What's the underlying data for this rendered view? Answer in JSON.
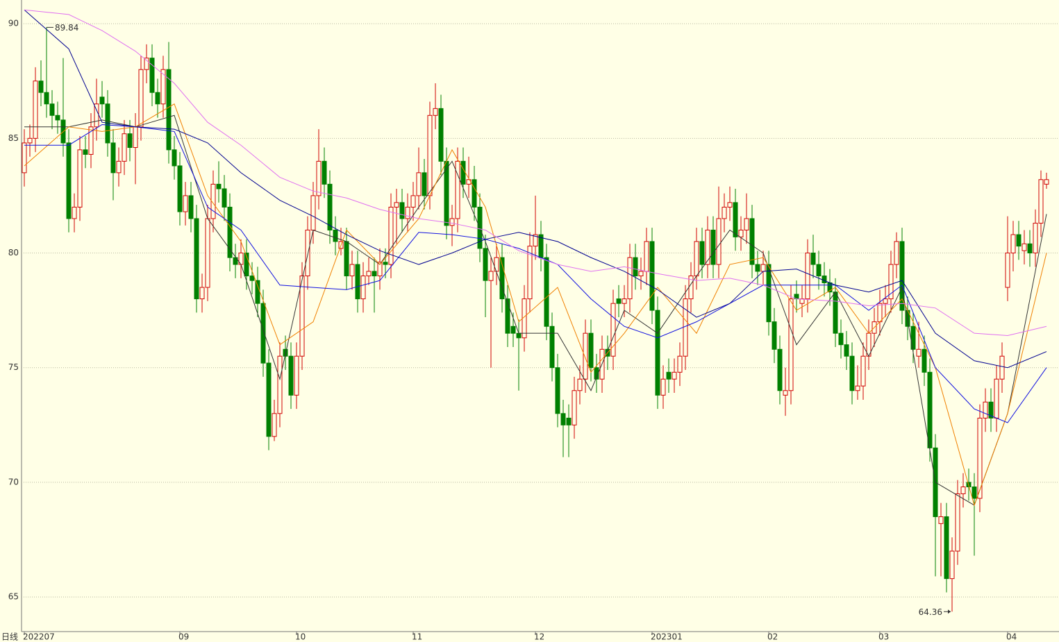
{
  "chart_data": {
    "type": "candlestick",
    "timeframe": "日线",
    "up_color": "#d00000",
    "down_color": "#008000",
    "grid": true,
    "ylim": [
      63.49,
      90.73
    ],
    "yticks": [
      65,
      70,
      75,
      80,
      85,
      90
    ],
    "xticks": [
      {
        "value": 0,
        "label": "202207"
      },
      {
        "value": 28,
        "label": "09"
      },
      {
        "value": 49,
        "label": "10"
      },
      {
        "value": 70,
        "label": "11"
      },
      {
        "value": 92,
        "label": "12"
      },
      {
        "value": 113,
        "label": "202301"
      },
      {
        "value": 134,
        "label": "02"
      },
      {
        "value": 154,
        "label": "03"
      },
      {
        "value": 177,
        "label": "04"
      }
    ],
    "ohlc": [
      [
        83.5,
        85.4,
        82.9,
        84.8
      ],
      [
        84.8,
        85.6,
        84.2,
        85.0
      ],
      [
        85.0,
        88.1,
        84.4,
        87.5
      ],
      [
        87.5,
        88.4,
        86.4,
        87.0
      ],
      [
        87.0,
        89.84,
        85.9,
        86.5
      ],
      [
        86.5,
        87.1,
        85.4,
        86.0
      ],
      [
        86.0,
        86.6,
        85.2,
        85.8
      ],
      [
        85.8,
        88.5,
        84.2,
        84.8
      ],
      [
        84.8,
        85.4,
        80.9,
        81.5
      ],
      [
        81.5,
        82.6,
        80.9,
        82.0
      ],
      [
        82.0,
        85.1,
        81.4,
        84.5
      ],
      [
        84.5,
        85.1,
        83.7,
        84.3
      ],
      [
        84.3,
        86.1,
        83.7,
        85.5
      ],
      [
        85.5,
        87.6,
        84.9,
        86.5
      ],
      [
        86.8,
        87.5,
        85.9,
        86.5
      ],
      [
        86.5,
        87.1,
        84.2,
        84.8
      ],
      [
        84.8,
        85.4,
        82.3,
        83.5
      ],
      [
        83.5,
        84.6,
        82.9,
        84.0
      ],
      [
        84.0,
        85.8,
        83.4,
        85.2
      ],
      [
        85.2,
        85.8,
        84.0,
        84.6
      ],
      [
        84.6,
        86.1,
        83.0,
        85.5
      ],
      [
        85.5,
        88.6,
        84.9,
        88.0
      ],
      [
        88.0,
        89.1,
        87.4,
        88.5
      ],
      [
        88.5,
        89.1,
        86.4,
        87.0
      ],
      [
        87.0,
        87.6,
        85.9,
        86.5
      ],
      [
        86.5,
        88.6,
        85.9,
        88.0
      ],
      [
        88.0,
        89.2,
        83.9,
        84.5
      ],
      [
        84.5,
        85.1,
        83.2,
        83.8
      ],
      [
        83.8,
        84.4,
        81.2,
        81.8
      ],
      [
        81.8,
        83.1,
        81.2,
        82.5
      ],
      [
        82.5,
        83.1,
        80.9,
        81.5
      ],
      [
        81.5,
        82.1,
        77.4,
        78.0
      ],
      [
        78.0,
        79.1,
        77.4,
        78.5
      ],
      [
        78.5,
        82.1,
        77.9,
        81.5
      ],
      [
        81.5,
        83.6,
        80.9,
        83.0
      ],
      [
        83.0,
        84.0,
        82.2,
        82.8
      ],
      [
        82.8,
        83.4,
        81.4,
        82.0
      ],
      [
        82.0,
        82.6,
        79.2,
        79.8
      ],
      [
        79.8,
        80.4,
        78.9,
        79.5
      ],
      [
        79.5,
        80.6,
        78.9,
        80.0
      ],
      [
        80.0,
        80.6,
        78.4,
        79.0
      ],
      [
        79.0,
        79.6,
        78.2,
        78.8
      ],
      [
        78.8,
        79.4,
        77.2,
        77.8
      ],
      [
        77.8,
        78.4,
        74.6,
        75.2
      ],
      [
        75.2,
        75.8,
        71.4,
        72.0
      ],
      [
        72.0,
        73.6,
        71.8,
        73.0
      ],
      [
        73.0,
        76.1,
        72.4,
        75.5
      ],
      [
        75.8,
        76.4,
        74.9,
        75.5
      ],
      [
        75.5,
        76.1,
        73.2,
        73.8
      ],
      [
        73.8,
        76.1,
        73.2,
        75.5
      ],
      [
        75.5,
        79.6,
        74.9,
        79.0
      ],
      [
        79.0,
        81.6,
        78.4,
        81.0
      ],
      [
        81.0,
        83.1,
        80.4,
        82.5
      ],
      [
        82.5,
        85.4,
        81.9,
        84.0
      ],
      [
        84.0,
        84.6,
        82.4,
        83.0
      ],
      [
        83.0,
        83.6,
        80.4,
        81.0
      ],
      [
        81.0,
        81.6,
        79.9,
        80.5
      ],
      [
        80.2,
        81.1,
        79.9,
        80.5
      ],
      [
        80.5,
        81.1,
        78.4,
        79.0
      ],
      [
        79.0,
        80.1,
        78.4,
        79.5
      ],
      [
        79.5,
        80.1,
        77.4,
        78.0
      ],
      [
        78.0,
        79.6,
        77.4,
        79.0
      ],
      [
        79.0,
        79.8,
        78.6,
        79.2
      ],
      [
        79.2,
        79.8,
        77.4,
        79.0
      ],
      [
        79.0,
        80.2,
        78.4,
        79.6
      ],
      [
        79.6,
        80.2,
        78.9,
        79.5
      ],
      [
        79.5,
        82.6,
        78.9,
        82.0
      ],
      [
        82.0,
        82.8,
        80.4,
        82.2
      ],
      [
        82.2,
        82.8,
        80.9,
        81.5
      ],
      [
        81.5,
        82.6,
        80.9,
        82.0
      ],
      [
        82.0,
        83.1,
        81.4,
        82.5
      ],
      [
        82.5,
        84.6,
        81.9,
        83.5
      ],
      [
        83.5,
        84.1,
        81.9,
        82.5
      ],
      [
        82.5,
        86.6,
        81.9,
        86.0
      ],
      [
        86.0,
        87.4,
        85.4,
        86.3
      ],
      [
        86.3,
        86.9,
        83.4,
        84.0
      ],
      [
        84.0,
        84.6,
        80.6,
        81.2
      ],
      [
        81.2,
        82.1,
        80.3,
        81.5
      ],
      [
        81.5,
        84.6,
        80.9,
        84.0
      ],
      [
        84.0,
        84.6,
        82.4,
        83.0
      ],
      [
        83.0,
        84.2,
        82.4,
        83.2
      ],
      [
        83.2,
        83.8,
        81.4,
        82.0
      ],
      [
        82.0,
        82.6,
        79.6,
        80.2
      ],
      [
        80.2,
        80.8,
        77.2,
        78.8
      ],
      [
        78.8,
        79.8,
        75.0,
        79.2
      ],
      [
        79.2,
        80.4,
        78.6,
        79.8
      ],
      [
        79.8,
        80.4,
        77.4,
        78.0
      ],
      [
        78.0,
        78.6,
        75.9,
        76.5
      ],
      [
        76.8,
        77.4,
        75.9,
        76.5
      ],
      [
        76.5,
        77.1,
        74.0,
        76.3
      ],
      [
        76.3,
        78.6,
        75.7,
        78.0
      ],
      [
        78.0,
        80.9,
        77.4,
        80.3
      ],
      [
        80.3,
        82.5,
        79.7,
        80.8
      ],
      [
        80.8,
        81.4,
        79.2,
        79.8
      ],
      [
        79.8,
        80.4,
        76.2,
        76.8
      ],
      [
        76.8,
        77.4,
        74.4,
        75.0
      ],
      [
        75.0,
        75.6,
        72.4,
        73.0
      ],
      [
        73.0,
        73.6,
        71.1,
        72.5
      ],
      [
        72.8,
        73.4,
        71.1,
        72.5
      ],
      [
        72.5,
        74.6,
        71.9,
        74.0
      ],
      [
        74.0,
        75.1,
        73.4,
        74.5
      ],
      [
        74.5,
        77.1,
        73.9,
        76.5
      ],
      [
        76.5,
        77.1,
        74.4,
        75.0
      ],
      [
        75.0,
        75.6,
        73.9,
        74.5
      ],
      [
        74.5,
        76.4,
        73.9,
        75.8
      ],
      [
        75.8,
        76.4,
        74.9,
        75.5
      ],
      [
        75.5,
        78.4,
        74.9,
        77.8
      ],
      [
        78.0,
        78.6,
        77.2,
        77.8
      ],
      [
        77.8,
        78.6,
        77.2,
        78.0
      ],
      [
        78.0,
        80.4,
        77.4,
        79.8
      ],
      [
        79.8,
        80.4,
        78.4,
        79.0
      ],
      [
        79.0,
        79.8,
        78.4,
        79.2
      ],
      [
        79.2,
        81.1,
        78.6,
        80.5
      ],
      [
        80.5,
        81.1,
        76.9,
        77.5
      ],
      [
        77.5,
        78.1,
        73.2,
        73.8
      ],
      [
        73.8,
        75.1,
        73.2,
        74.5
      ],
      [
        74.8,
        75.4,
        73.9,
        74.5
      ],
      [
        74.5,
        75.4,
        73.9,
        74.8
      ],
      [
        74.8,
        76.1,
        74.2,
        75.5
      ],
      [
        75.5,
        78.6,
        74.9,
        78.0
      ],
      [
        78.0,
        79.6,
        77.4,
        79.0
      ],
      [
        79.0,
        81.1,
        78.4,
        80.5
      ],
      [
        80.5,
        81.1,
        78.9,
        79.5
      ],
      [
        79.5,
        81.6,
        78.9,
        81.0
      ],
      [
        81.0,
        81.6,
        78.9,
        79.5
      ],
      [
        79.5,
        82.9,
        78.9,
        81.5
      ],
      [
        81.5,
        82.6,
        80.9,
        82.0
      ],
      [
        82.0,
        82.9,
        81.4,
        82.2
      ],
      [
        82.2,
        82.8,
        80.1,
        80.7
      ],
      [
        80.7,
        81.6,
        80.1,
        81.0
      ],
      [
        81.0,
        82.6,
        80.4,
        81.5
      ],
      [
        81.5,
        82.1,
        78.9,
        79.5
      ],
      [
        79.5,
        80.1,
        78.6,
        79.2
      ],
      [
        79.2,
        80.1,
        78.6,
        79.5
      ],
      [
        79.5,
        80.1,
        76.4,
        77.0
      ],
      [
        77.0,
        77.6,
        75.2,
        75.8
      ],
      [
        75.8,
        76.4,
        73.4,
        74.0
      ],
      [
        73.8,
        75.0,
        72.9,
        74.0
      ],
      [
        74.0,
        78.6,
        73.4,
        78.0
      ],
      [
        78.2,
        78.8,
        77.4,
        78.0
      ],
      [
        77.8,
        78.6,
        77.2,
        78.0
      ],
      [
        78.0,
        80.6,
        77.4,
        80.0
      ],
      [
        80.0,
        80.8,
        78.9,
        79.5
      ],
      [
        79.5,
        80.1,
        78.4,
        79.0
      ],
      [
        79.0,
        79.6,
        78.1,
        78.7
      ],
      [
        78.7,
        79.3,
        77.7,
        78.3
      ],
      [
        78.3,
        78.9,
        75.9,
        76.5
      ],
      [
        76.5,
        77.1,
        75.4,
        76.0
      ],
      [
        76.0,
        76.6,
        74.9,
        75.5
      ],
      [
        75.5,
        76.1,
        73.4,
        74.0
      ],
      [
        74.0,
        75.1,
        73.6,
        74.2
      ],
      [
        74.2,
        76.1,
        73.6,
        75.5
      ],
      [
        75.5,
        77.1,
        74.9,
        76.5
      ],
      [
        76.5,
        77.6,
        75.9,
        77.0
      ],
      [
        77.0,
        78.4,
        76.4,
        77.8
      ],
      [
        77.8,
        78.6,
        77.2,
        78.0
      ],
      [
        78.0,
        80.1,
        77.4,
        79.5
      ],
      [
        79.5,
        80.9,
        78.9,
        80.5
      ],
      [
        80.5,
        81.1,
        76.9,
        77.5
      ],
      [
        77.5,
        78.1,
        76.2,
        76.8
      ],
      [
        76.8,
        77.4,
        75.2,
        75.8
      ],
      [
        75.5,
        77.0,
        75.0,
        75.8
      ],
      [
        75.8,
        76.4,
        74.2,
        74.8
      ],
      [
        74.8,
        75.4,
        70.9,
        71.5
      ],
      [
        71.5,
        72.1,
        65.9,
        68.5
      ],
      [
        68.2,
        69.1,
        65.9,
        68.5
      ],
      [
        68.5,
        69.1,
        65.2,
        65.8
      ],
      [
        65.8,
        67.6,
        64.36,
        67.0
      ],
      [
        67.0,
        70.1,
        66.4,
        69.5
      ],
      [
        69.5,
        70.4,
        68.9,
        69.8
      ],
      [
        70.0,
        70.6,
        69.2,
        69.8
      ],
      [
        69.8,
        70.4,
        66.8,
        69.3
      ],
      [
        69.3,
        73.4,
        68.7,
        72.8
      ],
      [
        72.8,
        74.1,
        72.2,
        73.5
      ],
      [
        73.5,
        74.1,
        72.2,
        72.8
      ],
      [
        72.8,
        75.1,
        72.2,
        74.5
      ],
      [
        74.5,
        76.1,
        73.9,
        75.5
      ],
      [
        78.5,
        81.6,
        77.9,
        80.0
      ],
      [
        80.0,
        81.4,
        79.2,
        80.8
      ],
      [
        80.8,
        81.4,
        79.7,
        80.3
      ],
      [
        80.1,
        81.0,
        79.5,
        80.4
      ],
      [
        80.4,
        81.0,
        79.4,
        80.0
      ],
      [
        80.0,
        81.9,
        79.4,
        81.3
      ],
      [
        81.3,
        83.6,
        80.7,
        83.2
      ],
      [
        83.0,
        83.5,
        82.8,
        83.2
      ]
    ],
    "ma_lines": [
      {
        "color": "#333333",
        "x": [
          0,
          8,
          14,
          20,
          27,
          33,
          39,
          46,
          52,
          58,
          64,
          71,
          77,
          83,
          89,
          96,
          102,
          108,
          114,
          121,
          127,
          133,
          139,
          146,
          152,
          158,
          164,
          171,
          177,
          184
        ],
        "values": [
          85.5,
          85.5,
          85.8,
          85.5,
          86.0,
          81.5,
          79.5,
          74.5,
          81.0,
          80.5,
          79.5,
          82.0,
          84.0,
          80.5,
          76.5,
          76.5,
          74.0,
          77.5,
          76.5,
          79.0,
          81.0,
          80.0,
          76.0,
          78.3,
          75.5,
          78.5,
          70.0,
          69.0,
          73.0,
          81.7
        ]
      },
      {
        "color": "#f08000",
        "x": [
          0,
          8,
          14,
          20,
          27,
          33,
          39,
          46,
          52,
          58,
          64,
          71,
          77,
          83,
          89,
          96,
          102,
          108,
          114,
          121,
          127,
          133,
          139,
          146,
          152,
          158,
          164,
          171,
          177,
          184
        ],
        "values": [
          83.8,
          85.5,
          85.3,
          85.5,
          86.5,
          82.5,
          80.5,
          76.0,
          77.0,
          81.0,
          79.5,
          81.5,
          84.5,
          82.0,
          77.0,
          78.5,
          74.8,
          76.5,
          78.5,
          76.5,
          79.5,
          79.8,
          77.5,
          78.5,
          76.5,
          78.0,
          75.0,
          69.0,
          73.0,
          80.0
        ]
      },
      {
        "color": "#1010e0",
        "x": [
          0,
          8,
          14,
          20,
          27,
          33,
          39,
          46,
          52,
          58,
          64,
          71,
          77,
          83,
          89,
          96,
          102,
          108,
          114,
          121,
          127,
          133,
          139,
          146,
          152,
          158,
          164,
          171,
          177,
          184
        ],
        "values": [
          84.7,
          84.7,
          85.6,
          85.5,
          85.3,
          82.0,
          81.0,
          78.6,
          78.5,
          78.4,
          78.8,
          80.9,
          80.8,
          80.6,
          80.2,
          79.5,
          78.0,
          76.8,
          76.3,
          77.0,
          77.8,
          78.6,
          78.6,
          78.6,
          77.5,
          78.6,
          75.0,
          73.2,
          72.6,
          75.0
        ]
      },
      {
        "color": "#000090",
        "x": [
          0,
          8,
          14,
          20,
          27,
          33,
          39,
          46,
          52,
          58,
          64,
          71,
          77,
          83,
          89,
          96,
          102,
          108,
          114,
          121,
          127,
          133,
          139,
          146,
          152,
          158,
          164,
          171,
          177,
          184
        ],
        "values": [
          90.6,
          88.9,
          85.7,
          85.5,
          85.4,
          84.8,
          83.5,
          82.3,
          81.6,
          80.8,
          80.1,
          79.5,
          80.0,
          80.6,
          80.9,
          80.5,
          79.8,
          79.2,
          78.4,
          77.2,
          77.8,
          79.2,
          79.3,
          78.6,
          78.3,
          78.8,
          76.5,
          75.3,
          75.0,
          75.7
        ]
      },
      {
        "color": "#e070f0",
        "x": [
          0,
          8,
          14,
          20,
          27,
          33,
          39,
          46,
          52,
          58,
          64,
          71,
          77,
          83,
          89,
          96,
          102,
          108,
          114,
          121,
          127,
          133,
          139,
          146,
          152,
          158,
          164,
          171,
          177,
          184
        ],
        "values": [
          90.6,
          90.4,
          89.7,
          88.8,
          87.4,
          85.7,
          84.7,
          83.3,
          82.7,
          82.4,
          81.9,
          81.5,
          81.3,
          81.0,
          80.1,
          79.5,
          79.2,
          79.4,
          79.1,
          78.8,
          78.9,
          78.6,
          78.0,
          77.9,
          77.7,
          77.8,
          77.6,
          76.5,
          76.4,
          76.8
        ]
      }
    ]
  }
}
